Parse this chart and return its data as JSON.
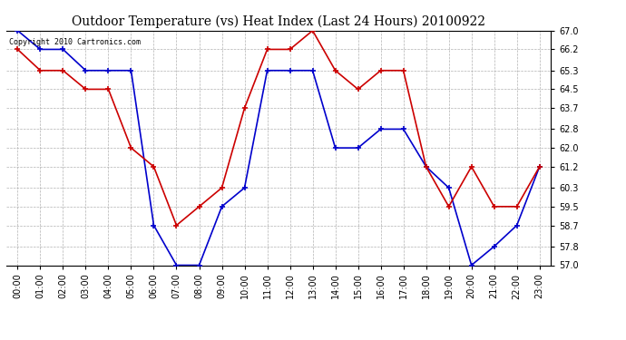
{
  "title": "Outdoor Temperature (vs) Heat Index (Last 24 Hours) 20100922",
  "copyright": "Copyright 2010 Cartronics.com",
  "hours": [
    "00:00",
    "01:00",
    "02:00",
    "03:00",
    "04:00",
    "05:00",
    "06:00",
    "07:00",
    "08:00",
    "09:00",
    "10:00",
    "11:00",
    "12:00",
    "13:00",
    "14:00",
    "15:00",
    "16:00",
    "17:00",
    "18:00",
    "19:00",
    "20:00",
    "21:00",
    "22:00",
    "23:00"
  ],
  "blue_temp": [
    67.0,
    66.2,
    66.2,
    65.3,
    65.3,
    65.3,
    58.7,
    57.0,
    57.0,
    59.5,
    60.3,
    65.3,
    65.3,
    65.3,
    62.0,
    62.0,
    62.8,
    62.8,
    61.2,
    60.3,
    57.0,
    57.8,
    58.7,
    61.2
  ],
  "red_heat": [
    66.2,
    65.3,
    65.3,
    64.5,
    64.5,
    62.0,
    61.2,
    58.7,
    59.5,
    60.3,
    63.7,
    66.2,
    66.2,
    67.0,
    65.3,
    64.5,
    65.3,
    65.3,
    61.2,
    59.5,
    61.2,
    59.5,
    59.5,
    61.2
  ],
  "ylim_min": 57.0,
  "ylim_max": 67.0,
  "yticks": [
    57.0,
    57.8,
    58.7,
    59.5,
    60.3,
    61.2,
    62.0,
    62.8,
    63.7,
    64.5,
    65.3,
    66.2,
    67.0
  ],
  "blue_color": "#0000cc",
  "red_color": "#cc0000",
  "bg_color": "#ffffff",
  "grid_color": "#aaaaaa",
  "title_fontsize": 10,
  "tick_fontsize": 7,
  "copyright_fontsize": 6
}
